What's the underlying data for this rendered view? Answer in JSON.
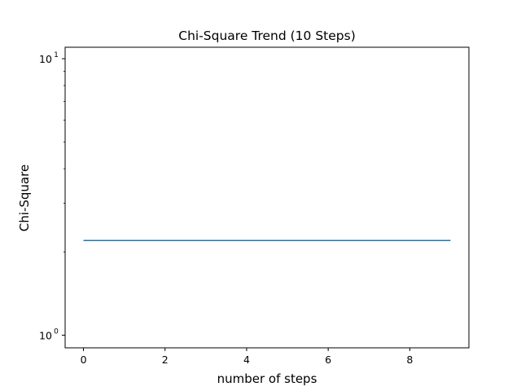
{
  "chart_data": {
    "type": "line",
    "title": "Chi-Square Trend (10 Steps)",
    "xlabel": "number of steps",
    "ylabel": "Chi-Square",
    "y_scale": "log",
    "grid": false,
    "xlim": [
      -0.45,
      9.45
    ],
    "ylim": [
      0.9,
      11
    ],
    "x_ticks": [
      0,
      2,
      4,
      6,
      8
    ],
    "x_tick_labels": [
      "0",
      "2",
      "4",
      "6",
      "8"
    ],
    "y_major_ticks": [
      1,
      10
    ],
    "y_tick_labels": [
      {
        "base": "10",
        "exp": "0"
      },
      {
        "base": "10",
        "exp": "1"
      }
    ],
    "y_minor_ticks": [
      2,
      3,
      4,
      5,
      6,
      7,
      8,
      9
    ],
    "series": [
      {
        "color": "#1f77b4",
        "x": [
          0,
          1,
          2,
          3,
          4,
          5,
          6,
          7,
          8,
          9
        ],
        "y": [
          2.2,
          2.2,
          2.2,
          2.2,
          2.2,
          2.2,
          2.2,
          2.2,
          2.2,
          2.2
        ]
      }
    ]
  }
}
